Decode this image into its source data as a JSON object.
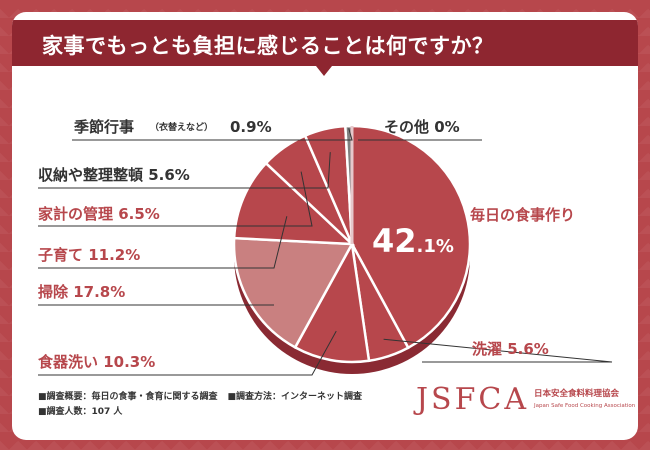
{
  "title": "家事でもっとも負担に感じることは何ですか？",
  "colors": {
    "frame": "#b7474c",
    "title_bg": "#8e2630",
    "accent": "#b7474c",
    "slice_main": "#b7474c",
    "slice_light": "#c98080",
    "slice_grey": "#808080",
    "slice_pale": "#e6c8cb",
    "label_dark": "#333333"
  },
  "chart_data": {
    "type": "pie",
    "categories": [
      "毎日の食事作り",
      "洗濯",
      "食器洗い",
      "掃除",
      "子育て",
      "家計の管理",
      "収納や整理整頓",
      "季節行事（衣替えなど）",
      "その他"
    ],
    "values": [
      42.1,
      5.6,
      10.3,
      17.8,
      11.2,
      6.5,
      5.6,
      0.9,
      0
    ],
    "unit": "%",
    "labels": {
      "daily_meals": "毎日の食事作り",
      "laundry": "洗濯",
      "laundry_value": "5.6%",
      "dishes": "食器洗い",
      "dishes_value": "10.3%",
      "cleaning": "掃除",
      "cleaning_value": "17.8%",
      "childcare": "子育て",
      "childcare_value": "11.2%",
      "household_budget": "家計の管理",
      "household_budget_value": "6.5%",
      "storage": "収納や整理整頓",
      "storage_value": "5.6%",
      "seasonal": "季節行事",
      "seasonal_note": "（衣替えなど）",
      "seasonal_value": "0.9%",
      "other": "その他",
      "other_value": "0%",
      "main_value_int": "42",
      "main_value_dec": ".1%"
    }
  },
  "footer": {
    "survey_overview": "■調査概要：毎日の食事・食育に関する調査",
    "survey_method": "■調査方法：インターネット調査",
    "respondents": "■調査人数：107 人"
  },
  "logo": {
    "main": "JSFCA",
    "jp": "日本安全食料料理協会",
    "en": "Japan Safe Food Cooking Association"
  }
}
